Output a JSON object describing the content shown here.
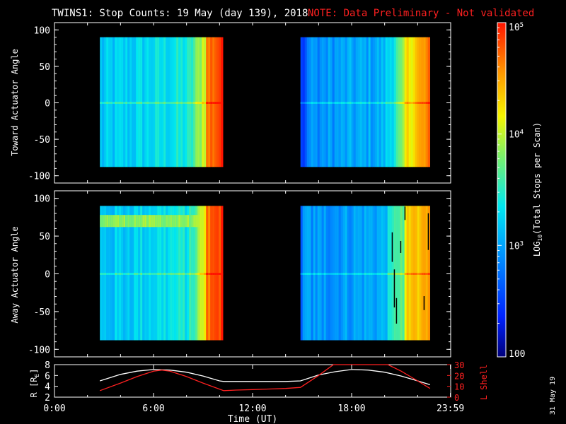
{
  "title": {
    "main": "TWINS1: Stop Counts: 19 May (day 139), 2018",
    "note": "NOTE: Data Preliminary - Not validated"
  },
  "stamp": "31 May 19",
  "colors": {
    "background": "#000000",
    "axes": "#ffffff",
    "note": "#ff2020",
    "r_line": "#ffffff",
    "l_line": "#ff2020"
  },
  "chart_data": [
    {
      "type": "heatmap",
      "name": "toward",
      "ylabel": "Toward Actuator Angle",
      "xlim": [
        0,
        24
      ],
      "ylim": [
        -110,
        110
      ],
      "yticks": [
        100,
        50,
        0,
        -50,
        -100
      ],
      "ytick_labels": [
        "100",
        "50",
        "0",
        "-50",
        "-100"
      ],
      "data_time_ranges_h": [
        [
          2.75,
          10.25
        ],
        [
          14.9,
          22.75
        ]
      ],
      "angle_range": [
        -88,
        90
      ],
      "description": "log10 stop counts per scan; blue/cyan early in each interval rising to orange/red near end"
    },
    {
      "type": "heatmap",
      "name": "away",
      "ylabel": "Away Actuator Angle",
      "xlim": [
        0,
        24
      ],
      "ylim": [
        -110,
        110
      ],
      "yticks": [
        100,
        50,
        0,
        -50,
        -100
      ],
      "ytick_labels": [
        "100",
        "50",
        "0",
        "-50",
        "-100"
      ],
      "data_time_ranges_h": [
        [
          2.75,
          10.25
        ],
        [
          14.9,
          22.75
        ]
      ],
      "angle_range": [
        -88,
        90
      ],
      "description": "yellow band near +70 deg in first interval; red/orange with black streaks late in second interval"
    },
    {
      "type": "line",
      "name": "orbit",
      "ylabel_left": "R [R",
      "ylabel_left_sub": "E",
      "ylabel_left_end": "]",
      "ylabel_right": "L Shell",
      "ylim_left": [
        2,
        8
      ],
      "ylim_right": [
        0,
        30
      ],
      "yticks_left": [
        8,
        6,
        4,
        2
      ],
      "ytick_labels_left": [
        "8",
        "6",
        "4",
        "2"
      ],
      "yticks_right": [
        30,
        20,
        10,
        0
      ],
      "ytick_labels_right": [
        "30",
        "20",
        "10",
        "0"
      ],
      "xlabel": "Time (UT)",
      "xticks": [
        0,
        6,
        12,
        18,
        23.983
      ],
      "xtick_labels": [
        "0:00",
        "6:00",
        "12:00",
        "18:00",
        "23:59"
      ],
      "series": [
        {
          "name": "R",
          "axis": "left",
          "color": "#ffffff",
          "x": [
            2.75,
            4,
            5,
            6,
            7,
            8,
            9,
            10,
            10.25,
            11,
            12,
            13,
            14,
            14.9,
            16,
            17,
            18,
            19,
            20,
            21,
            22,
            22.75
          ],
          "y": [
            5.0,
            6.2,
            6.8,
            7.1,
            7.0,
            6.6,
            5.9,
            5.0,
            4.9,
            4.9,
            4.9,
            4.9,
            4.9,
            5.0,
            6.1,
            6.7,
            7.1,
            7.0,
            6.6,
            5.9,
            5.0,
            4.3
          ]
        },
        {
          "name": "L Shell",
          "axis": "right",
          "color": "#ff2020",
          "x": [
            2.75,
            4,
            5,
            6,
            6.5,
            7,
            8,
            9,
            10.25,
            11,
            12,
            13,
            14,
            14.9,
            16,
            16.9,
            20.2,
            21,
            22,
            22.75
          ],
          "y": [
            6,
            13,
            19,
            24,
            25,
            24,
            19,
            13,
            6,
            6.5,
            7,
            7.5,
            8,
            9,
            20,
            30,
            30,
            24,
            15,
            8
          ]
        }
      ]
    }
  ],
  "colorbar": {
    "label": "LOG",
    "label_sub": "10",
    "label_end": "(Total Stops per Scan)",
    "range": [
      100,
      100000
    ],
    "tick_labels": [
      {
        "value": 100000,
        "base": "10",
        "exp": "5"
      },
      {
        "value": 10000,
        "base": "10",
        "exp": "4"
      },
      {
        "value": 1000,
        "base": "10",
        "exp": "3"
      },
      {
        "value": 100,
        "base": "100",
        "exp": ""
      }
    ]
  }
}
